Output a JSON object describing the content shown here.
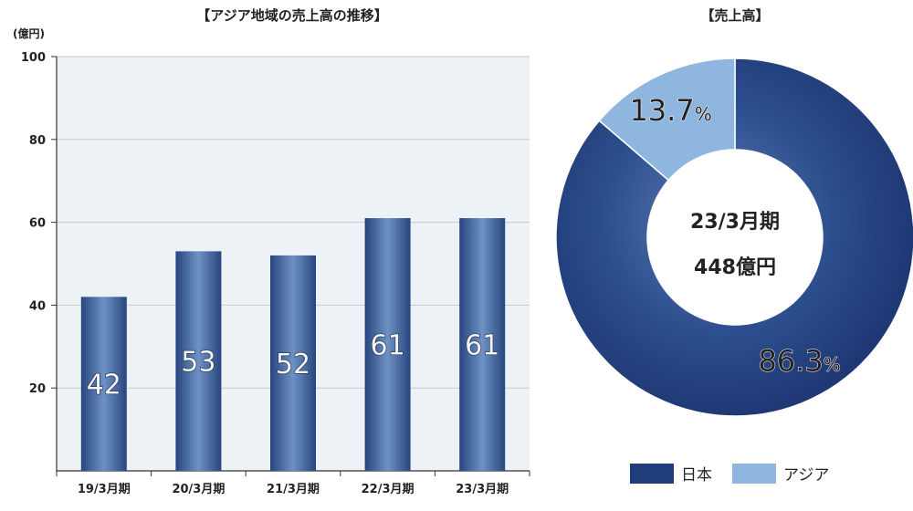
{
  "bar_title": "【アジア地域の売上高の推移】",
  "pie_title": "【売上高】",
  "unit_label": "(億円)",
  "center_line1": "23/3月期",
  "center_line2": "448億円",
  "colors": {
    "japan": "#1f3d7a",
    "asia": "#8fb6df",
    "bar": "#3b5c99",
    "plot_bg": "#ecf2f6"
  },
  "chart_data": [
    {
      "type": "bar",
      "title": "【アジア地域の売上高の推移】",
      "ylabel": "(億円)",
      "categories": [
        "19/3月期",
        "20/3月期",
        "21/3月期",
        "22/3月期",
        "23/3月期"
      ],
      "values": [
        42,
        53,
        52,
        61,
        61
      ],
      "labels": [
        "42",
        "53",
        "52",
        "61",
        "61"
      ],
      "ylim": [
        0,
        100
      ],
      "yticks": [
        20,
        40,
        60,
        80,
        100
      ],
      "grid": true
    },
    {
      "type": "pie",
      "title": "【売上高】",
      "labels": [
        "日本",
        "アジア"
      ],
      "values": [
        86.3,
        13.7
      ],
      "value_labels": [
        "86.3",
        "13.7"
      ],
      "value_suffix": "%",
      "legend": "bottom"
    }
  ]
}
